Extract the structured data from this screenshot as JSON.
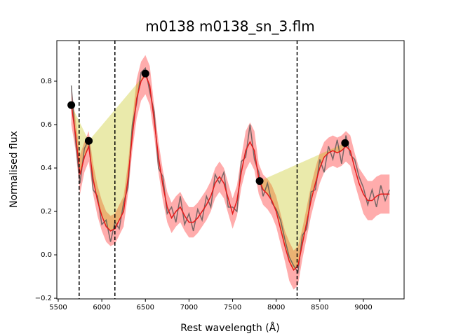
{
  "chart_data": {
    "type": "line",
    "title": "m0138 m0138_sn_3.flm",
    "x_label": "Rest wavelength (Å)",
    "y_label": "Normalised flux",
    "xlim": [
      5484,
      9467
    ],
    "ylim": [
      -0.203,
      0.987
    ],
    "xticks": [
      5500,
      6000,
      6500,
      7000,
      7500,
      8000,
      8500,
      9000
    ],
    "yticks": [
      {
        "value": -0.2,
        "label": "−0.2"
      },
      {
        "value": 0,
        "label": "0.0"
      },
      0.2,
      0.4,
      0.6,
      0.8
    ],
    "x": [
      5650,
      5700,
      5750,
      5800,
      5850,
      5900,
      5950,
      6000,
      6050,
      6100,
      6150,
      6200,
      6250,
      6300,
      6350,
      6400,
      6450,
      6500,
      6550,
      6600,
      6650,
      6700,
      6750,
      6800,
      6850,
      6900,
      6950,
      7000,
      7050,
      7100,
      7150,
      7200,
      7250,
      7300,
      7350,
      7400,
      7450,
      7500,
      7550,
      7600,
      7650,
      7700,
      7750,
      7800,
      7850,
      7900,
      7950,
      8000,
      8050,
      8100,
      8150,
      8200,
      8250,
      8300,
      8350,
      8400,
      8450,
      8500,
      8550,
      8600,
      8650,
      8700,
      8750,
      8800,
      8850,
      8900,
      8950,
      9000,
      9050,
      9100,
      9150,
      9200,
      9250,
      9300
    ],
    "spectrum": {
      "color": "#555555",
      "values": [
        0.78,
        0.52,
        0.33,
        0.49,
        0.53,
        0.3,
        0.27,
        0.14,
        0.16,
        0.06,
        0.15,
        0.12,
        0.24,
        0.31,
        0.6,
        0.7,
        0.84,
        0.86,
        0.75,
        0.66,
        0.4,
        0.36,
        0.19,
        0.22,
        0.15,
        0.27,
        0.14,
        0.19,
        0.11,
        0.21,
        0.16,
        0.27,
        0.22,
        0.37,
        0.33,
        0.38,
        0.22,
        0.22,
        0.2,
        0.43,
        0.45,
        0.6,
        0.44,
        0.38,
        0.27,
        0.33,
        0.24,
        0.21,
        0.16,
        0.07,
        -0.01,
        -0.05,
        -0.08,
        0.09,
        0.12,
        0.29,
        0.3,
        0.44,
        0.38,
        0.5,
        0.44,
        0.53,
        0.42,
        0.55,
        0.46,
        0.44,
        0.36,
        0.31,
        0.23,
        0.3,
        0.22,
        0.32,
        0.25,
        0.3
      ]
    },
    "smooth": {
      "color": "#e41a1a",
      "values": [
        0.69,
        0.55,
        0.37,
        0.45,
        0.5,
        0.35,
        0.25,
        0.18,
        0.13,
        0.11,
        0.12,
        0.16,
        0.2,
        0.35,
        0.55,
        0.72,
        0.8,
        0.83,
        0.78,
        0.62,
        0.45,
        0.32,
        0.22,
        0.17,
        0.2,
        0.22,
        0.18,
        0.15,
        0.15,
        0.17,
        0.2,
        0.23,
        0.27,
        0.33,
        0.36,
        0.33,
        0.26,
        0.19,
        0.25,
        0.38,
        0.48,
        0.52,
        0.48,
        0.35,
        0.3,
        0.28,
        0.25,
        0.2,
        0.12,
        0.04,
        -0.03,
        -0.07,
        -0.05,
        0.05,
        0.15,
        0.25,
        0.33,
        0.4,
        0.45,
        0.47,
        0.48,
        0.47,
        0.48,
        0.5,
        0.48,
        0.4,
        0.33,
        0.28,
        0.25,
        0.25,
        0.27,
        0.28,
        0.28,
        0.28
      ]
    },
    "band": {
      "color": "#ff3030",
      "lower": [
        0.6,
        0.48,
        0.28,
        0.38,
        0.43,
        0.28,
        0.18,
        0.11,
        0.06,
        0.04,
        0.05,
        0.09,
        0.13,
        0.28,
        0.48,
        0.63,
        0.71,
        0.74,
        0.69,
        0.55,
        0.38,
        0.25,
        0.15,
        0.1,
        0.13,
        0.15,
        0.11,
        0.08,
        0.08,
        0.1,
        0.13,
        0.16,
        0.2,
        0.26,
        0.29,
        0.26,
        0.19,
        0.12,
        0.18,
        0.31,
        0.39,
        0.43,
        0.39,
        0.28,
        0.23,
        0.21,
        0.18,
        0.13,
        0.05,
        -0.03,
        -0.12,
        -0.16,
        -0.14,
        -0.02,
        0.08,
        0.18,
        0.26,
        0.33,
        0.38,
        0.4,
        0.41,
        0.4,
        0.41,
        0.43,
        0.41,
        0.33,
        0.26,
        0.19,
        0.16,
        0.16,
        0.18,
        0.19,
        0.19,
        0.19
      ],
      "upper": [
        0.78,
        0.62,
        0.46,
        0.52,
        0.57,
        0.42,
        0.32,
        0.25,
        0.2,
        0.18,
        0.19,
        0.23,
        0.27,
        0.42,
        0.62,
        0.81,
        0.89,
        0.92,
        0.87,
        0.69,
        0.52,
        0.39,
        0.29,
        0.24,
        0.27,
        0.29,
        0.25,
        0.22,
        0.22,
        0.24,
        0.27,
        0.3,
        0.34,
        0.4,
        0.43,
        0.4,
        0.33,
        0.26,
        0.32,
        0.45,
        0.57,
        0.61,
        0.57,
        0.42,
        0.37,
        0.35,
        0.32,
        0.27,
        0.19,
        0.11,
        0.06,
        0.02,
        0.04,
        0.12,
        0.22,
        0.32,
        0.4,
        0.47,
        0.52,
        0.54,
        0.55,
        0.54,
        0.55,
        0.57,
        0.55,
        0.47,
        0.4,
        0.37,
        0.34,
        0.34,
        0.36,
        0.37,
        0.37,
        0.37
      ]
    },
    "features": [
      {
        "x": [
          5650,
          5850
        ],
        "y": [
          0.69,
          0.525
        ]
      },
      {
        "x": [
          5850,
          6500
        ],
        "y": [
          0.525,
          0.835
        ]
      },
      {
        "x": [
          7810,
          8790
        ],
        "y": [
          0.34,
          0.515
        ]
      }
    ],
    "feature_color": "#bfbf00",
    "vlines": [
      5740,
      6150,
      8240
    ]
  }
}
